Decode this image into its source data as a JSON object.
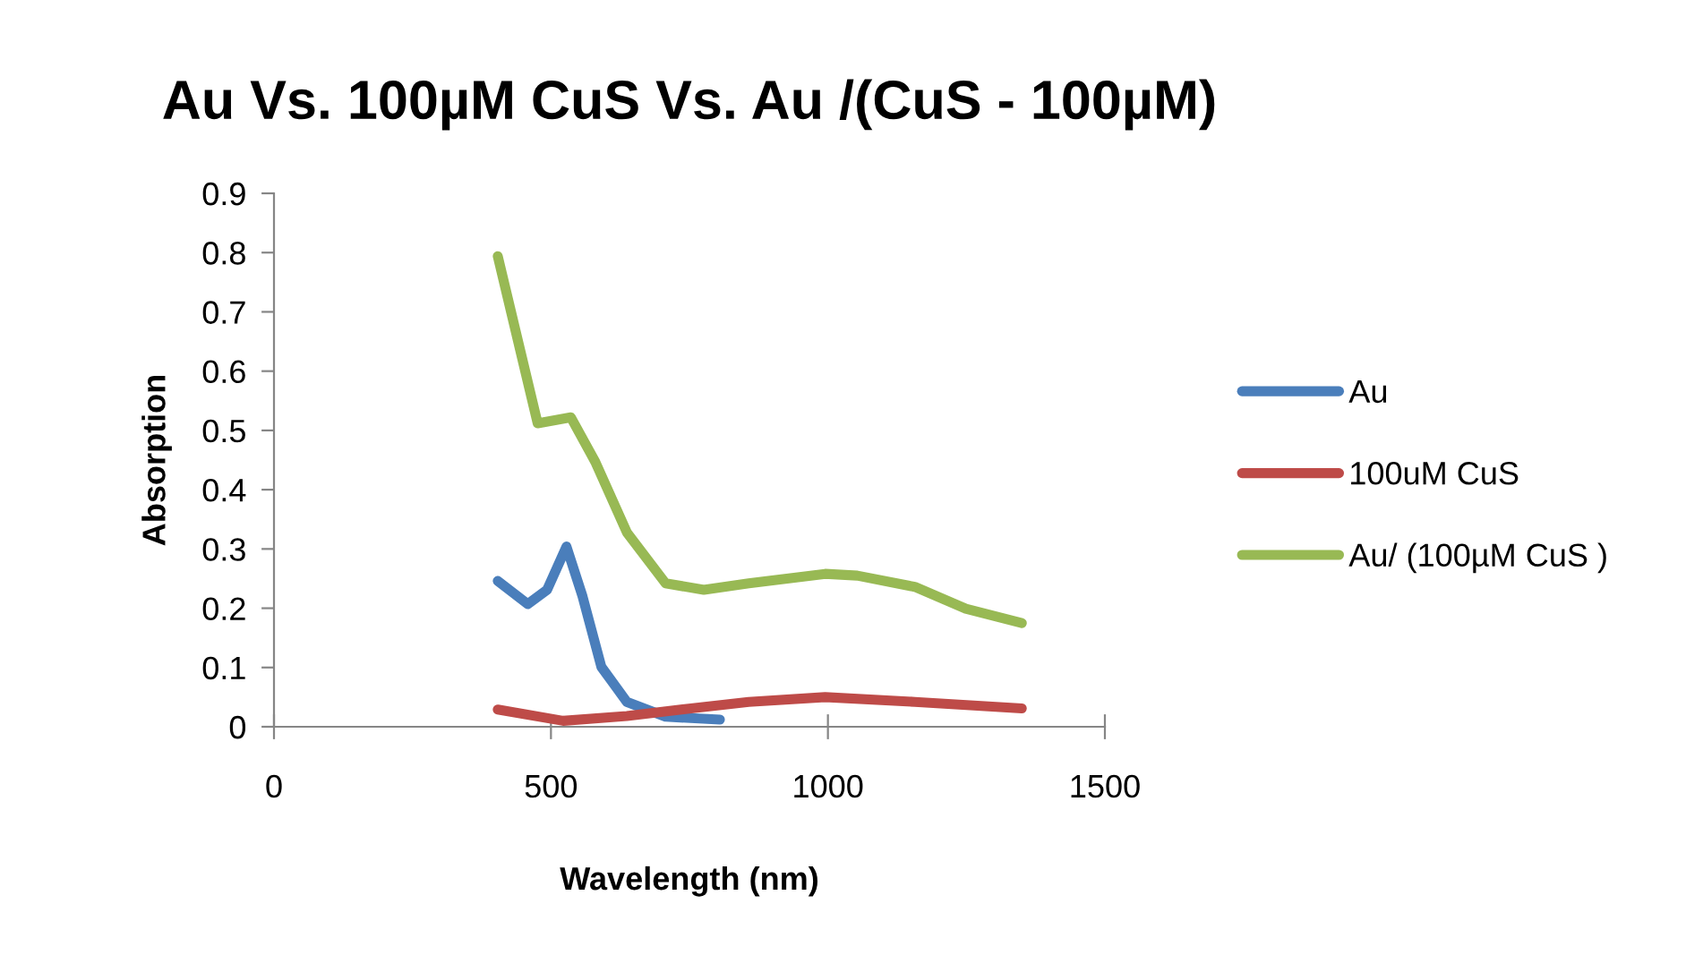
{
  "chart_data": {
    "type": "line",
    "title": "Au Vs. 100µM CuS Vs. Au /(CuS - 100µM)",
    "xlabel": "Wavelength (nm)",
    "ylabel": "Absorption",
    "xlim": [
      0,
      1500
    ],
    "xticks": [
      0,
      500,
      1000,
      1500
    ],
    "ylim": [
      0,
      0.9
    ],
    "yticks": [
      0,
      0.1,
      0.2,
      0.3,
      0.4,
      0.5,
      0.6,
      0.7,
      0.8,
      0.9
    ],
    "grid": false,
    "legend": "right",
    "marker": "none",
    "line_style": "solid",
    "series": [
      {
        "name": "Au",
        "color": "#4a7ebb",
        "x": [
          404,
          458,
          493,
          528,
          557,
          591,
          637,
          707,
          805
        ],
        "values": [
          0.246,
          0.207,
          0.231,
          0.304,
          0.22,
          0.101,
          0.042,
          0.017,
          0.012
        ]
      },
      {
        "name": "100uM CuS",
        "color": "#be4b48",
        "x": [
          404,
          522,
          637,
          753,
          857,
          995,
          1157,
          1350
        ],
        "values": [
          0.029,
          0.01,
          0.018,
          0.031,
          0.042,
          0.05,
          0.042,
          0.031
        ]
      },
      {
        "name": "Au/ (100µM CuS )",
        "color": "#98b954",
        "x": [
          404,
          476,
          536,
          580,
          637,
          707,
          776,
          857,
          995,
          1053,
          1157,
          1249,
          1350
        ],
        "values": [
          0.794,
          0.512,
          0.522,
          0.447,
          0.328,
          0.242,
          0.231,
          0.242,
          0.258,
          0.255,
          0.236,
          0.199,
          0.175
        ]
      }
    ]
  }
}
